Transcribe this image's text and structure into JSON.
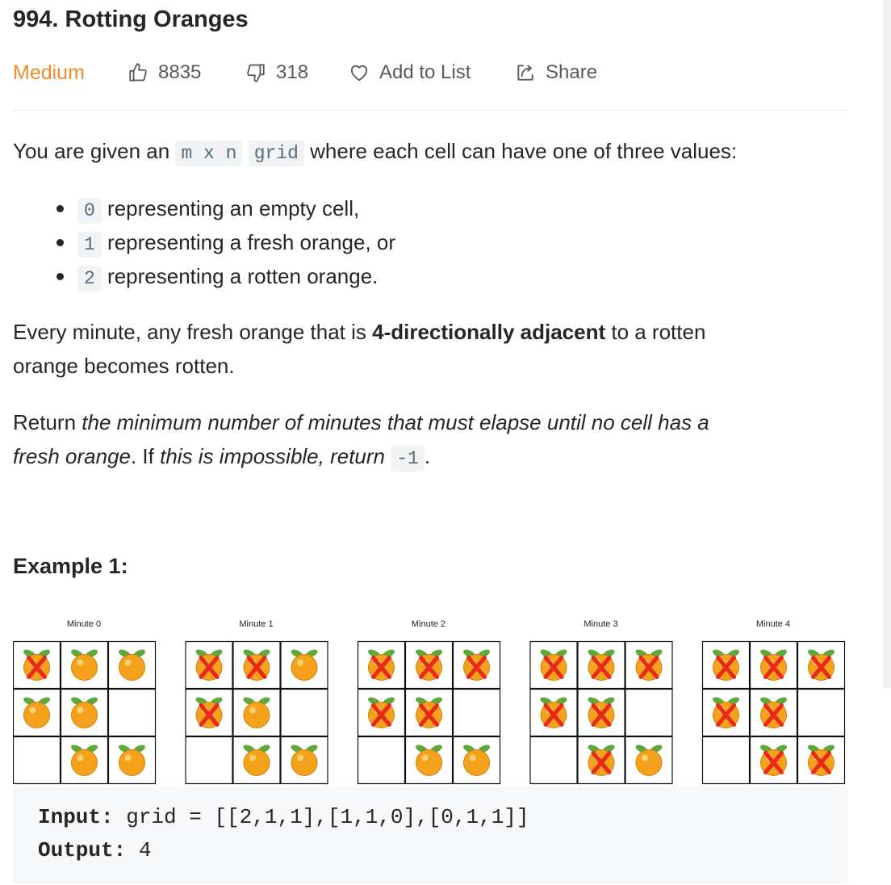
{
  "problem": {
    "title": "994. Rotting Oranges",
    "difficulty": "Medium",
    "likes": "8835",
    "dislikes": "318",
    "add_to_list_label": "Add to List",
    "share_label": "Share"
  },
  "description": {
    "p1_before": "You are given an",
    "p1_code1": "m x n",
    "p1_code2": "grid",
    "p1_after": "where each cell can have one of three values:",
    "bullets": [
      {
        "code": "0",
        "text": "representing an empty cell,"
      },
      {
        "code": "1",
        "text": "representing a fresh orange, or"
      },
      {
        "code": "2",
        "text": "representing a rotten orange."
      }
    ],
    "p2_before": "Every minute, any fresh orange that is",
    "p2_bold": "4-directionally adjacent",
    "p2_after": "to a rotten",
    "p2_line2": "orange becomes rotten.",
    "p3_return": "Return",
    "p3_em1": "the minimum number of minutes that must elapse until no cell has a",
    "p3_em2": "fresh orange",
    "p3_mid": ". If",
    "p3_em3": "this is impossible, return",
    "p3_code": "-1",
    "p3_end": "."
  },
  "example": {
    "title": "Example 1:",
    "minutes": [
      {
        "label": "Minute 0",
        "grid": [
          [
            2,
            1,
            1
          ],
          [
            1,
            1,
            0
          ],
          [
            0,
            1,
            1
          ]
        ]
      },
      {
        "label": "Minute 1",
        "grid": [
          [
            2,
            2,
            1
          ],
          [
            2,
            1,
            0
          ],
          [
            0,
            1,
            1
          ]
        ]
      },
      {
        "label": "Minute 2",
        "grid": [
          [
            2,
            2,
            2
          ],
          [
            2,
            2,
            0
          ],
          [
            0,
            1,
            1
          ]
        ]
      },
      {
        "label": "Minute 3",
        "grid": [
          [
            2,
            2,
            2
          ],
          [
            2,
            2,
            0
          ],
          [
            0,
            2,
            1
          ]
        ]
      },
      {
        "label": "Minute 4",
        "grid": [
          [
            2,
            2,
            2
          ],
          [
            2,
            2,
            0
          ],
          [
            0,
            2,
            2
          ]
        ]
      }
    ],
    "input_label": "Input:",
    "input_value": "grid = [[2,1,1],[1,1,0],[0,1,1]]",
    "output_label": "Output:",
    "output_value": "4"
  },
  "colors": {
    "difficulty_medium": "#ef8a2e",
    "orange": "#f4a21c",
    "leaf": "#5fa83b",
    "rotten_mark": "#e8291c"
  }
}
